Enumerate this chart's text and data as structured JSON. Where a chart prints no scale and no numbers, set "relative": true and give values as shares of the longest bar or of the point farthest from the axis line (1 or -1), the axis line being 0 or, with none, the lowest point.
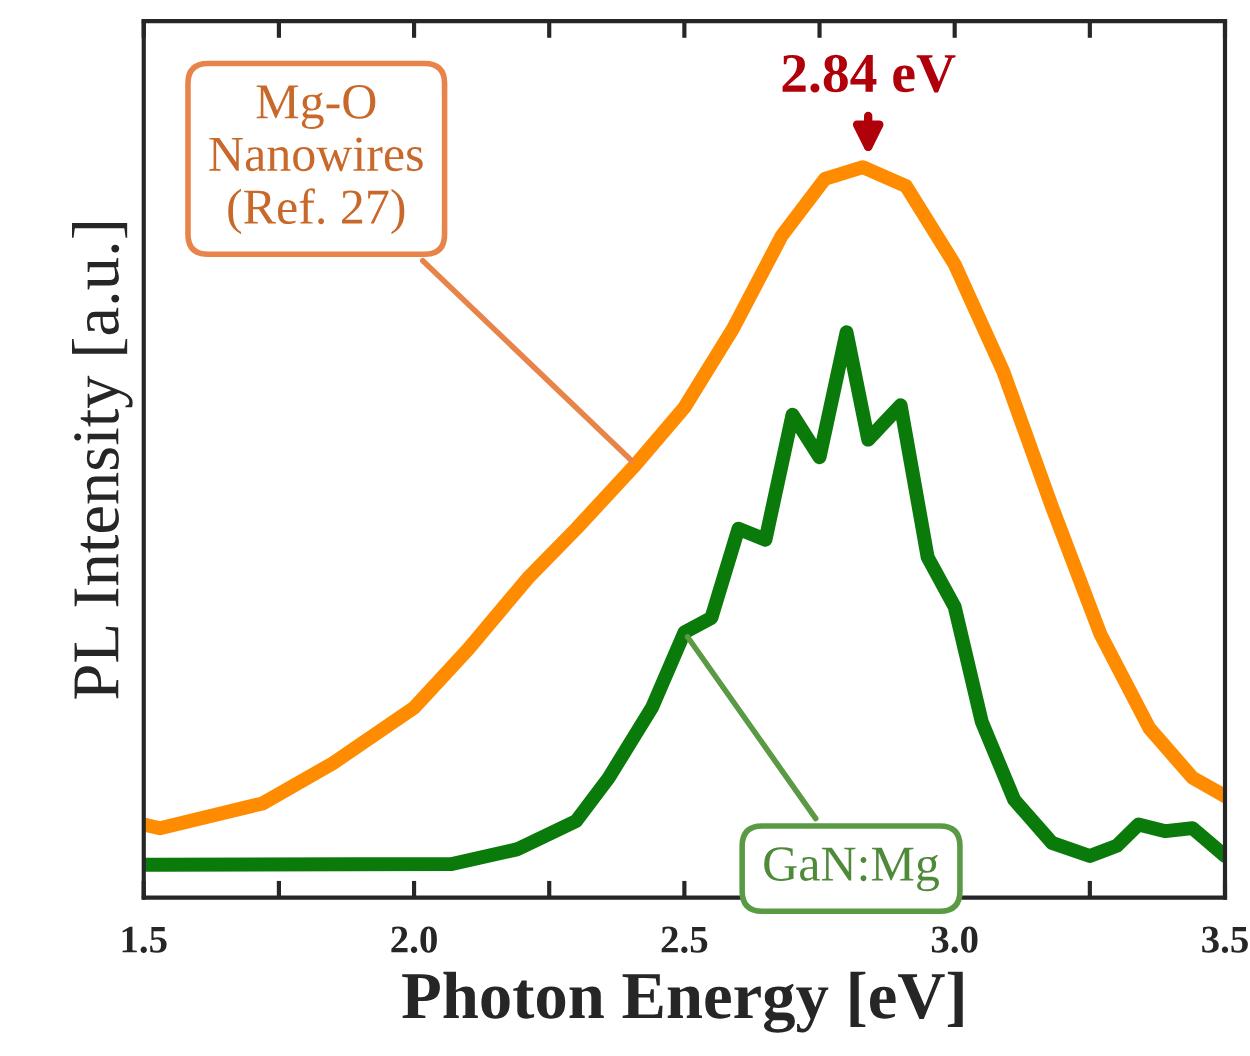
{
  "chart_data": {
    "type": "line",
    "relative": true,
    "xlabel": "Photon Energy [eV]",
    "ylabel": "PL Intensity [a.u.]",
    "xlim": [
      1.5,
      3.5
    ],
    "xticks": [
      "1.5",
      {
        "value": 1.75,
        "label": null
      },
      {
        "value": 2.0,
        "label": "2.0"
      },
      {
        "value": 2.25,
        "label": null
      },
      2.5,
      {
        "value": 2.75,
        "label": null
      },
      {
        "value": 3.0,
        "label": "3.0"
      },
      {
        "value": 3.25,
        "label": null
      },
      3.5
    ],
    "series": [
      {
        "color": "#ff8c00",
        "x": [
          1.5,
          1.53,
          1.72,
          1.85,
          2.0,
          2.1,
          2.21,
          2.3,
          2.41,
          2.5,
          2.59,
          2.68,
          2.76,
          2.83,
          2.91,
          3.0,
          3.09,
          3.18,
          3.27,
          3.36,
          3.44,
          3.5
        ],
        "values": [
          0.1,
          0.095,
          0.129,
          0.184,
          0.26,
          0.34,
          0.437,
          0.505,
          0.593,
          0.671,
          0.779,
          0.906,
          0.984,
          1.0,
          0.974,
          0.867,
          0.72,
          0.535,
          0.36,
          0.232,
          0.164,
          0.139
        ]
      },
      {
        "color": "#0a7a0a",
        "x": [
          1.5,
          1.53,
          2.07,
          2.19,
          2.3,
          2.36,
          2.44,
          2.5,
          2.55,
          2.6,
          2.65,
          2.7,
          2.75,
          2.8,
          2.84,
          2.9,
          2.95,
          3.0,
          3.05,
          3.11,
          3.18,
          3.25,
          3.3,
          3.34,
          3.39,
          3.44,
          3.5
        ],
        "values": [
          0.045,
          0.045,
          0.046,
          0.066,
          0.105,
          0.164,
          0.26,
          0.363,
          0.383,
          0.505,
          0.49,
          0.661,
          0.603,
          0.774,
          0.627,
          0.674,
          0.466,
          0.398,
          0.241,
          0.134,
          0.075,
          0.057,
          0.071,
          0.1,
          0.091,
          0.095,
          0.057
        ]
      }
    ],
    "annotations": [
      {
        "text": "2.84 eV",
        "x": 2.84,
        "y": 1.0
      },
      {
        "text": "Mg-O\nNanowires\n(Ref. 27)",
        "x": 2.41,
        "y": 0.593
      },
      {
        "text": "GaN:Mg",
        "x": 2.5,
        "y": 0.363
      }
    ],
    "grid": false
  }
}
